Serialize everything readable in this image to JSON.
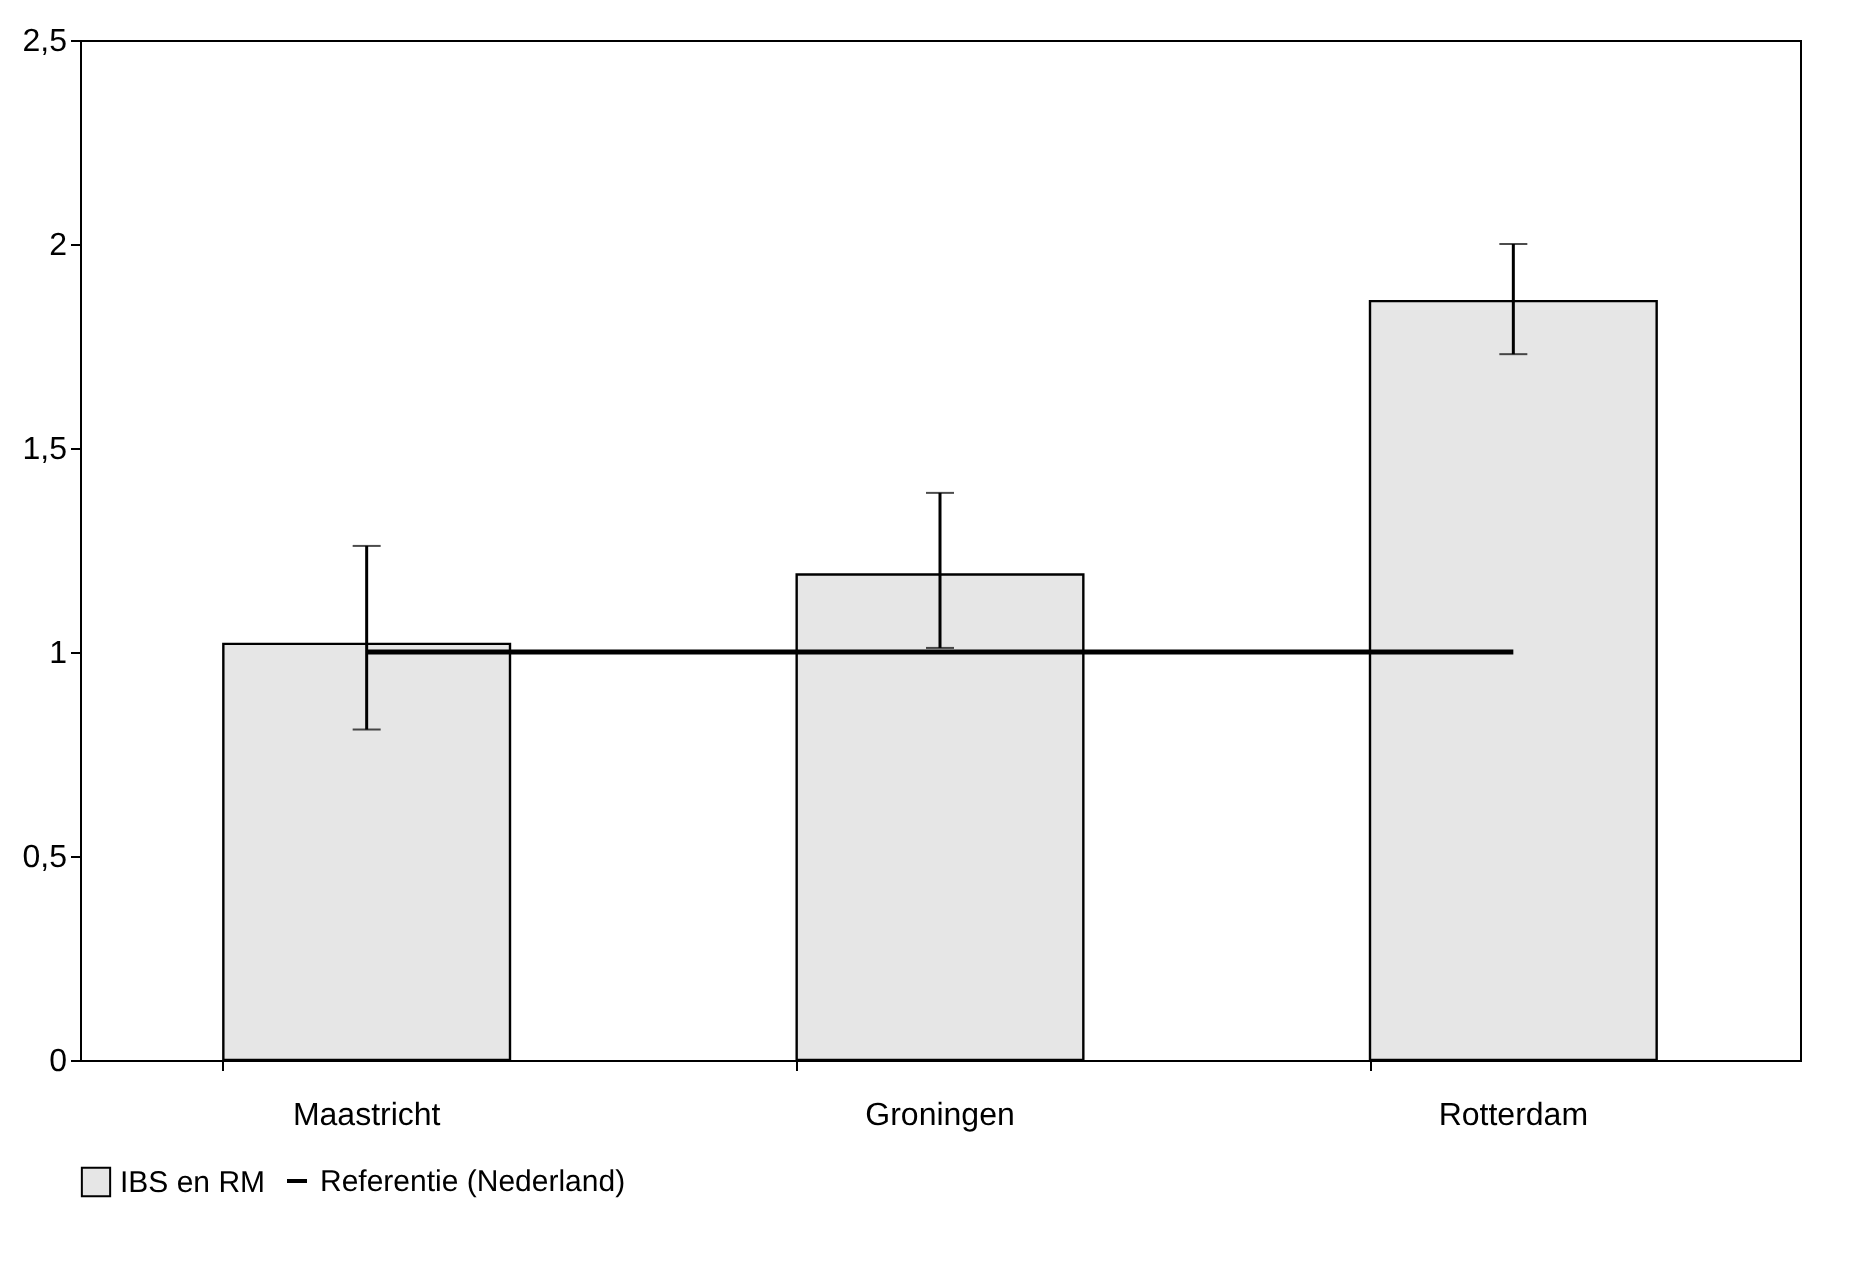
{
  "chart_data": {
    "type": "bar",
    "categories": [
      "Maastricht",
      "Groningen",
      "Rotterdam"
    ],
    "series": [
      {
        "name": "IBS en RM",
        "color": "#e6e6e6",
        "values": [
          1.02,
          1.19,
          1.86
        ],
        "errors": [
          [
            0.81,
            1.26
          ],
          [
            1.01,
            1.39
          ],
          [
            1.73,
            2.0
          ]
        ]
      },
      {
        "name": "Referentie (Nederland)",
        "type": "line",
        "color": "#000000",
        "values": [
          1,
          1,
          1
        ]
      }
    ],
    "ylim": [
      0,
      2.5
    ],
    "yticks": [
      0,
      {
        "value": 0.5,
        "label": "0,5"
      },
      1,
      {
        "value": 1.5,
        "label": "1,5"
      },
      2,
      {
        "value": 2.5,
        "label": "2,5"
      }
    ],
    "grid": false,
    "legend": "bottom"
  }
}
